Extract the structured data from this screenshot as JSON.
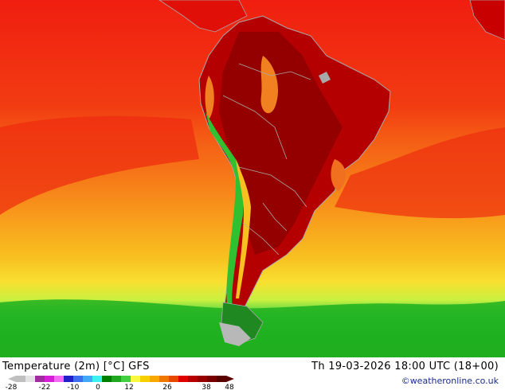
{
  "title": "Temperature (2m) [°C] GFS",
  "valid_time": "Th 19-03-2026 18:00 UTC (18+00)",
  "credit": "©weatheronline.co.uk",
  "legend": {
    "tick_labels": [
      "-28",
      "-22",
      "-10",
      "0",
      "12",
      "26",
      "38",
      "48"
    ],
    "colors": [
      "#bfbfbf",
      "#e3e3e3",
      "#a02ca0",
      "#d81fd8",
      "#f56af5",
      "#2020c8",
      "#3c6ff0",
      "#42a8f8",
      "#3ff0f0",
      "#008000",
      "#20a820",
      "#40d040",
      "#f8f840",
      "#f8d000",
      "#f8a800",
      "#f07800",
      "#e84800",
      "#e00000",
      "#b80000",
      "#980000",
      "#780000",
      "#5a0000"
    ]
  },
  "colors": {
    "land_border": "#a9a9a9",
    "ocean_bg": "#f03c10"
  }
}
